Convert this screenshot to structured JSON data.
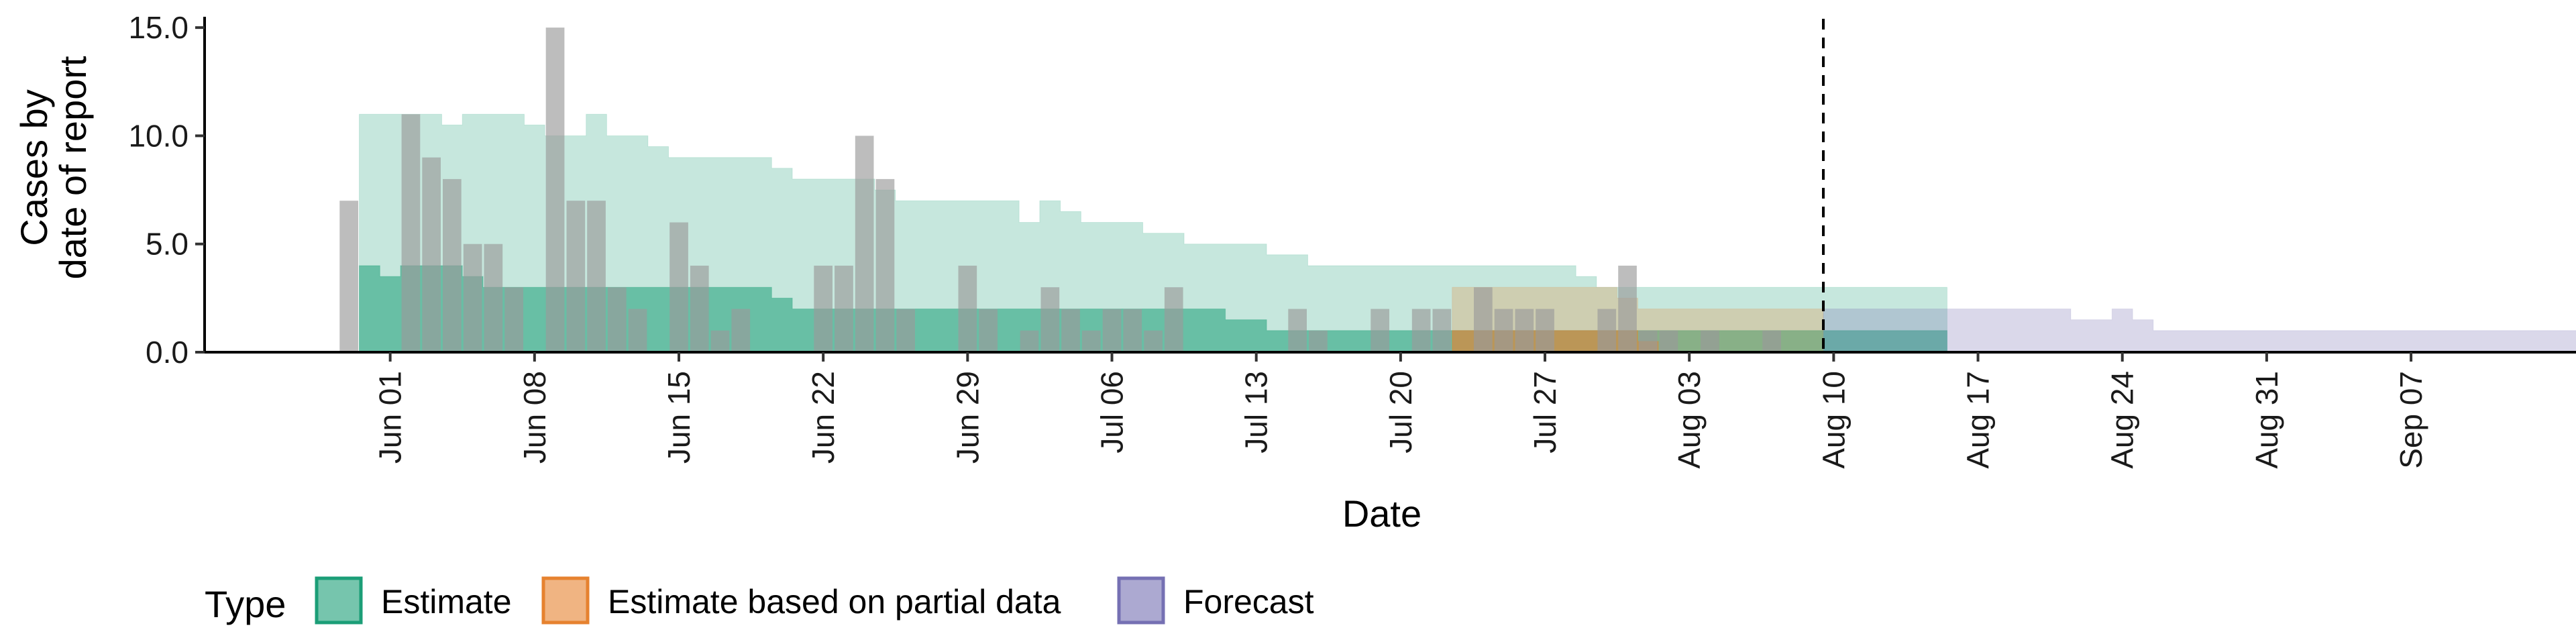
{
  "chart_data": {
    "type": "area",
    "xlabel": "Date",
    "ylabel_line1": "Cases by",
    "ylabel_line2": "date of report",
    "ylim": [
      0,
      15.5
    ],
    "yticks": [
      0,
      5,
      10,
      15
    ],
    "ytick_labels": [
      "0.0",
      "5.0",
      "10.0",
      "15.0"
    ],
    "xlim": [
      "2021-05-23",
      "2021-09-15"
    ],
    "xticks": [
      {
        "date": "2021-06-01",
        "label": "Jun 01"
      },
      {
        "date": "2021-06-08",
        "label": "Jun 08"
      },
      {
        "date": "2021-06-15",
        "label": "Jun 15"
      },
      {
        "date": "2021-06-22",
        "label": "Jun 22"
      },
      {
        "date": "2021-06-29",
        "label": "Jun 29"
      },
      {
        "date": "2021-07-06",
        "label": "Jul 06"
      },
      {
        "date": "2021-07-13",
        "label": "Jul 13"
      },
      {
        "date": "2021-07-20",
        "label": "Jul 20"
      },
      {
        "date": "2021-07-27",
        "label": "Jul 27"
      },
      {
        "date": "2021-08-03",
        "label": "Aug 03"
      },
      {
        "date": "2021-08-10",
        "label": "Aug 10"
      },
      {
        "date": "2021-08-17",
        "label": "Aug 17"
      },
      {
        "date": "2021-08-24",
        "label": "Aug 24"
      },
      {
        "date": "2021-08-31",
        "label": "Aug 31"
      },
      {
        "date": "2021-09-07",
        "label": "Sep 07"
      }
    ],
    "forecast_date": "2021-08-09",
    "observed_cases": {
      "start_date": "2021-05-30",
      "values": [
        7,
        0,
        0,
        11,
        9,
        8,
        5,
        5,
        3,
        0,
        15,
        7,
        7,
        3,
        2,
        0,
        6,
        4,
        1,
        2,
        0,
        0,
        0,
        4,
        4,
        10,
        8,
        2,
        0,
        0,
        4,
        2,
        0,
        1,
        3,
        2,
        1,
        2,
        2,
        1,
        3,
        0,
        0,
        0,
        0,
        0,
        2,
        1,
        0,
        0,
        2,
        0,
        2,
        2,
        0,
        3,
        2,
        2,
        2,
        0,
        0,
        2,
        4,
        1,
        1,
        0,
        1,
        0,
        0,
        1,
        0
      ]
    },
    "colors": {
      "estimate": "#1B9E77",
      "partial": "#E6822F",
      "forecast": "#7570B3",
      "bars": "#9a9a9a"
    },
    "legend": {
      "title": "Type",
      "placement": "bottom-left",
      "items": [
        {
          "key": "estimate",
          "label": "Estimate"
        },
        {
          "key": "partial",
          "label": "Estimate based on partial data"
        },
        {
          "key": "forecast",
          "label": "Forecast"
        }
      ]
    },
    "series": [
      {
        "key": "estimate",
        "start_date": "2021-05-31",
        "upper90": [
          11,
          11,
          11,
          11,
          10.5,
          11,
          11,
          11,
          10.5,
          10,
          10,
          11,
          10,
          10,
          9.5,
          9,
          9,
          9,
          9,
          9,
          8.5,
          8,
          8,
          8,
          8,
          7.5,
          7,
          7,
          7,
          7,
          7,
          7,
          6,
          7,
          6.5,
          6,
          6,
          6,
          5.5,
          5.5,
          5,
          5,
          5,
          5,
          4.5,
          4.5,
          4,
          4,
          4,
          4,
          4,
          4,
          4,
          4,
          4,
          4,
          4,
          4,
          4,
          3.5,
          3,
          3,
          3,
          3,
          3,
          3,
          3,
          3,
          3,
          3,
          3,
          3,
          3,
          3,
          3,
          3,
          3
        ],
        "upper50": [
          4,
          3.5,
          4,
          4,
          4,
          3.5,
          3,
          3,
          3,
          3,
          3,
          3,
          3,
          3,
          3,
          3,
          3,
          3,
          3,
          3,
          2.5,
          2,
          2,
          2,
          2,
          2,
          2,
          2,
          2,
          2,
          2,
          2,
          2,
          2,
          2,
          2,
          2,
          2,
          2,
          2,
          2,
          2,
          1.5,
          1.5,
          1,
          1,
          1,
          1,
          1,
          1,
          1,
          1,
          1,
          1,
          1,
          1,
          1,
          1,
          1,
          1,
          1,
          1,
          1,
          1,
          1,
          1,
          1,
          1,
          1,
          1,
          1,
          1,
          1,
          1,
          1,
          1,
          1
        ]
      },
      {
        "key": "partial",
        "start_date": "2021-07-23",
        "upper90": [
          3,
          3,
          3,
          3,
          3,
          3,
          3,
          3,
          2.5,
          2,
          2,
          2,
          2,
          2,
          2,
          2,
          2,
          2
        ],
        "upper50": [
          1,
          1,
          1,
          1,
          1,
          1,
          1,
          1,
          1,
          0.5,
          0,
          0,
          0,
          0,
          0,
          0,
          0,
          0
        ]
      },
      {
        "key": "forecast",
        "start_date": "2021-08-10",
        "upper90": [
          2,
          2,
          2,
          2,
          2,
          2,
          2,
          2,
          2,
          2,
          2,
          2,
          1.5,
          1.5,
          2,
          1.5,
          1,
          1,
          1,
          1,
          1,
          1,
          1,
          1,
          1,
          1,
          1,
          1,
          1,
          1,
          1,
          1,
          1,
          1,
          1,
          1,
          1,
          1,
          1,
          1,
          1,
          1,
          1
        ],
        "upper50": []
      }
    ]
  }
}
